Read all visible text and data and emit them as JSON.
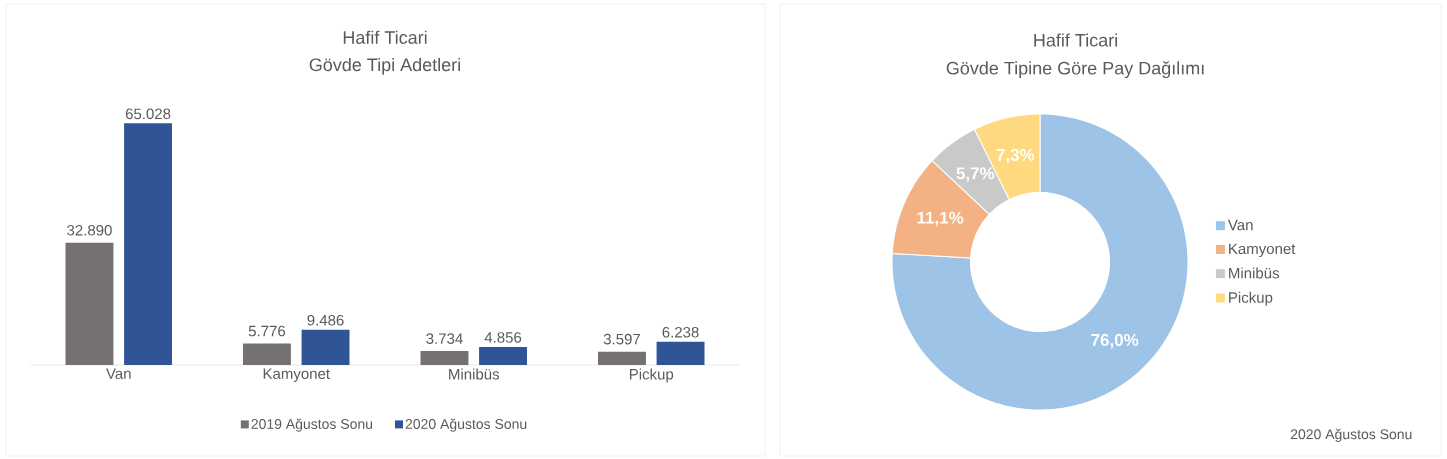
{
  "chart_data": [
    {
      "type": "bar",
      "title": "Hafif Ticari",
      "subtitle": "Gövde Tipi Adetleri",
      "categories": [
        "Van",
        "Kamyonet",
        "Minibüs",
        "Pickup"
      ],
      "legend": "bottom",
      "series": [
        {
          "name": "2019 Ağustos Sonu",
          "color": "#767171",
          "values": [
            32890,
            5776,
            3734,
            3597
          ],
          "value_labels": [
            "32.890",
            "5.776",
            "3.734",
            "3.597"
          ]
        },
        {
          "name": "2020 Ağustos Sonu",
          "color": "#2f5597",
          "values": [
            65028,
            9486,
            4856,
            6238
          ],
          "value_labels": [
            "65.028",
            "9.486",
            "4.856",
            "6.238"
          ]
        }
      ]
    },
    {
      "type": "donut",
      "title": "Hafif Ticari",
      "subtitle": "Gövde Tipine Göre Pay Dağılımı",
      "categories": [
        "Van",
        "Kamyonet",
        "Minibüs",
        "Pickup"
      ],
      "values": [
        76.0,
        11.1,
        5.7,
        7.3
      ],
      "value_labels": [
        "76,0%",
        "11,1%",
        "5,7%",
        "7,3%"
      ],
      "colors": [
        "#9dc3e6",
        "#f4b183",
        "#c9c9c9",
        "#ffd97f"
      ],
      "legend": "right",
      "annotations": [
        "2020 Ağustos Sonu"
      ]
    }
  ]
}
